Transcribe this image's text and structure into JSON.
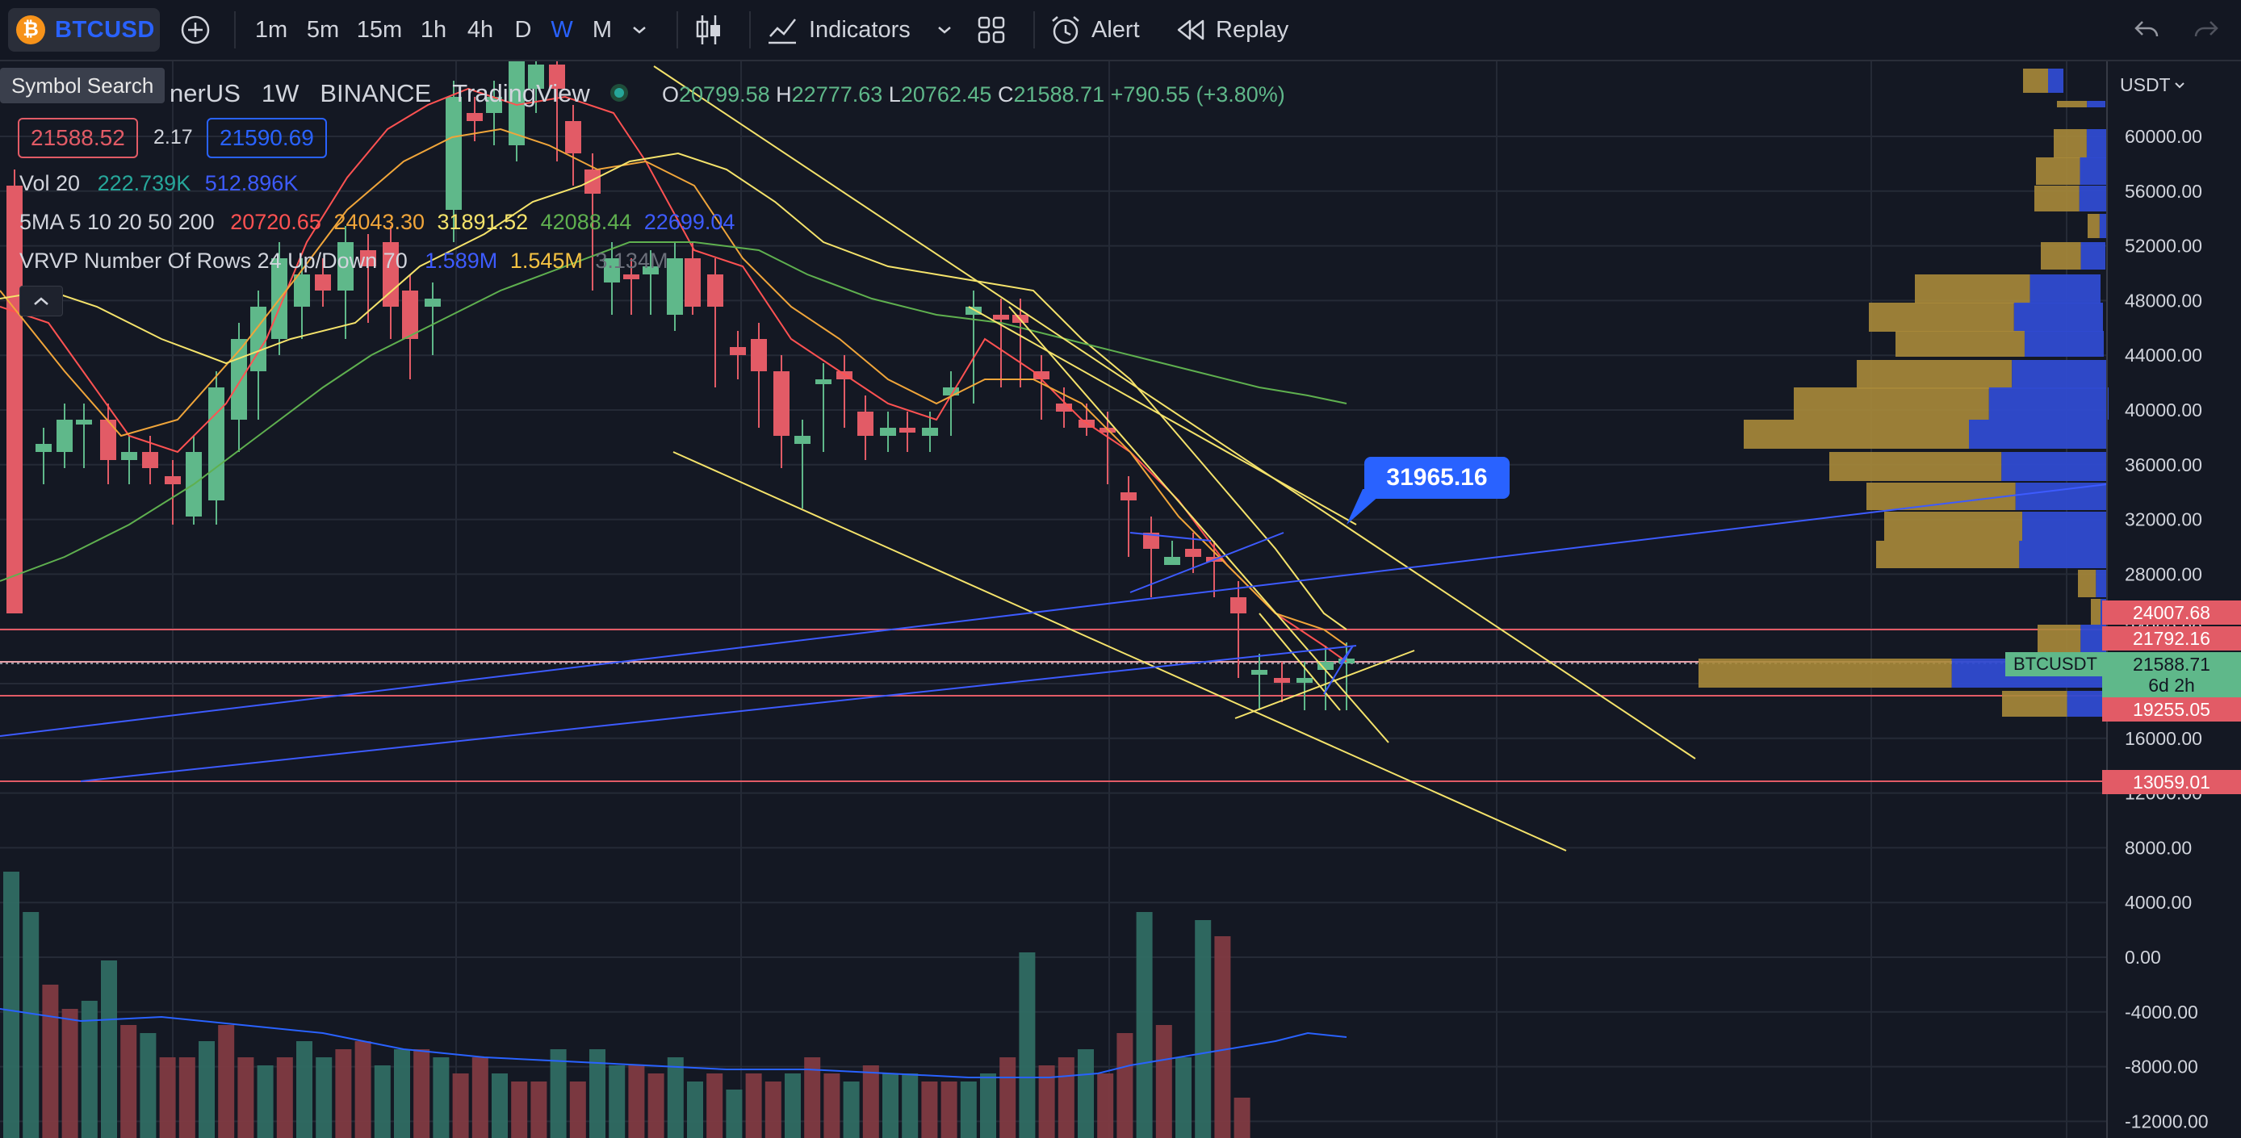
{
  "toolbar": {
    "symbol": "BTCUSD",
    "timeframes": [
      "1m",
      "5m",
      "15m",
      "1h",
      "4h",
      "D",
      "W",
      "M"
    ],
    "active_timeframe": "W",
    "indicators_label": "Indicators",
    "alert_label": "Alert",
    "replay_label": "Replay"
  },
  "tooltip": "Symbol Search",
  "legend": {
    "symbol_partial": "nerUS",
    "interval": "1W",
    "exchange": "BINANCE",
    "source": "TradingView",
    "ohlc": {
      "o": "O",
      "o_val": "20799.58",
      "h": "H",
      "h_val": "22777.63",
      "l": "L",
      "l_val": "20762.45",
      "c": "C",
      "c_val": "21588.71",
      "change": "+790.55 (+3.80%)"
    },
    "bid": "21588.52",
    "spread": "2.17",
    "ask": "21590.69",
    "vol": {
      "label": "Vol 20",
      "v1": "222.739K",
      "v2": "512.896K"
    },
    "ma": {
      "label": "5MA 5 10 20 50 200",
      "v1": "20720.65",
      "v2": "24043.30",
      "v3": "31891.52",
      "v4": "42088.44",
      "v5": "22699.04"
    },
    "vrvp": {
      "label": "VRVP Number Of Rows 24 Up/Down 70",
      "v1": "1.589M",
      "v2": "1.545M",
      "v3": "3.134M"
    }
  },
  "callout_price": "31965.16",
  "price_axis": {
    "currency": "USDT",
    "labels": [
      "60000.00",
      "56000.00",
      "52000.00",
      "48000.00",
      "44000.00",
      "40000.00",
      "36000.00",
      "32000.00",
      "28000.00",
      "24000.00",
      "20000.00",
      "16000.00",
      "12000.00",
      "8000.00",
      "4000.00",
      "0.00",
      "-4000.00",
      "-8000.00",
      "-12000.00"
    ],
    "tags": {
      "t1": "24007.68",
      "t2": "21792.16",
      "symbol": "BTCUSDT",
      "last": "21588.71",
      "countdown": "6d 2h",
      "t3": "19255.05",
      "t4": "13059.01"
    }
  },
  "colors": {
    "up": "#5fb88a",
    "down": "#e25b66",
    "ma5": "#ff5252",
    "ma10": "#f0a53a",
    "ma20": "#f5e36b",
    "ma50": "#5fb04f",
    "ma200": "#3d5bff",
    "blue": "#2962ff"
  }
}
